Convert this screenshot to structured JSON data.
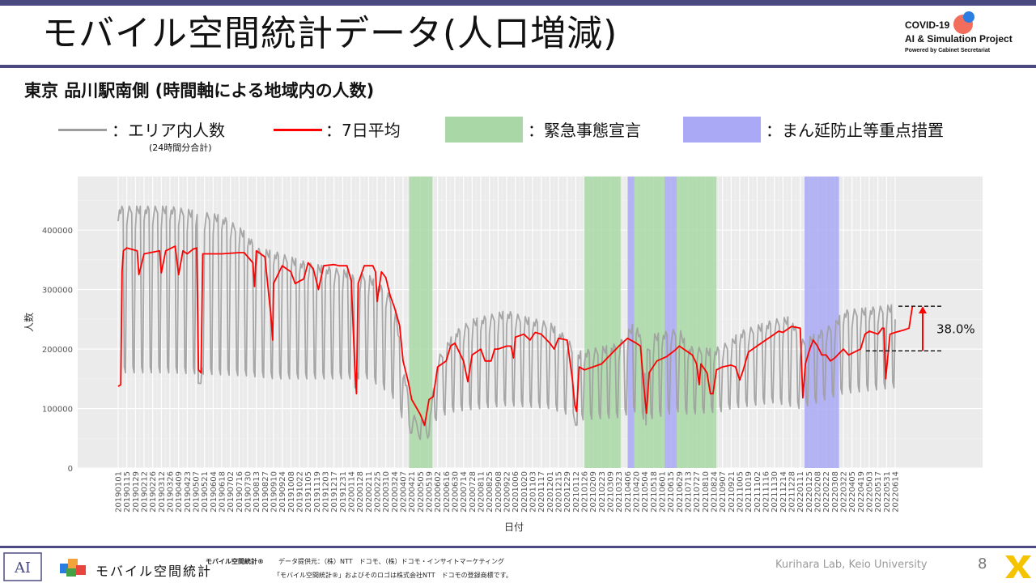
{
  "slide": {
    "title": "モバイル空間統計データ(人口増減)",
    "subtitle": "東京 品川駅南側 (時間軸による地域内の人数)",
    "page_number": "8",
    "credit": "Kurihara Lab, Keio University"
  },
  "brand": {
    "line1": "COVID-19",
    "line2": "AI & Simulation Project",
    "line3": "Powered by Cabinet Secretariat",
    "logo_text": "モバイル空間統計",
    "logo_mark": "AI"
  },
  "legend": {
    "raw_label": "：エリア内人数",
    "raw_note": "(24時間分合計)",
    "avg_label": "：7日平均",
    "emergency_label": "：緊急事態宣言",
    "semi_label": "：まん延防止等重点措置"
  },
  "footer": {
    "product": "モバイル空間統計®",
    "source": "データ提供元：（株）NTT　ドコモ、（株）ドコモ・インサイトマーケティング",
    "trademark": "「モバイル空間統計®」およびそのロゴは株式会社NTT　ドコモの登録商標です。"
  },
  "colors": {
    "accent": "#4b4a80",
    "raw": "#9e9e9e",
    "avg": "#ff0000",
    "emergency": "#a9d8a6",
    "semi": "#a9a9f5",
    "panel": "#ebebeb"
  },
  "chart_data": {
    "type": "line",
    "xlabel": "日付",
    "ylabel": "人数",
    "ylim": [
      0,
      490000
    ],
    "yticks": [
      0,
      100000,
      200000,
      300000,
      400000
    ],
    "x_tick_labels": [
      "20190101",
      "20190115",
      "20190129",
      "20190212",
      "20190226",
      "20190312",
      "20190326",
      "20190409",
      "20190423",
      "20190507",
      "20190521",
      "20190604",
      "20190618",
      "20190702",
      "20190716",
      "20190730",
      "20190813",
      "20190827",
      "20190910",
      "20190924",
      "20191008",
      "20191022",
      "20191105",
      "20191119",
      "20191203",
      "20191217",
      "20191231",
      "20200114",
      "20200128",
      "20200211",
      "20200225",
      "20200310",
      "20200324",
      "20200407",
      "20200421",
      "20200505",
      "20200519",
      "20200602",
      "20200616",
      "20200630",
      "20200714",
      "20200728",
      "20200811",
      "20200825",
      "20200908",
      "20200922",
      "20201006",
      "20201020",
      "20201103",
      "20201117",
      "20201201",
      "20201215",
      "20201229",
      "20210112",
      "20210126",
      "20210209",
      "20210223",
      "20210309",
      "20210323",
      "20210406",
      "20210420",
      "20210504",
      "20210518",
      "20210601",
      "20210615",
      "20210629",
      "20210713",
      "20210727",
      "20210810",
      "20210824",
      "20210907",
      "20210921",
      "20211005",
      "20211019",
      "20211102",
      "20211116",
      "20211130",
      "20211214",
      "20211228",
      "20220111",
      "20220125",
      "20220208",
      "20220222",
      "20220308",
      "20220322",
      "20220405",
      "20220419",
      "20220503",
      "20220517",
      "20220531",
      "20220614"
    ],
    "grid": true,
    "series": [
      {
        "name": "エリア内人数",
        "style": "weekly oscillation (weekday high / weekend low)",
        "weekday_levels": [
          [
            0,
            440000
          ],
          [
            6,
            440000
          ],
          [
            12,
            425000
          ],
          [
            15,
            395000
          ],
          [
            16,
            370000
          ],
          [
            18,
            365000
          ],
          [
            22,
            345000
          ],
          [
            29,
            325000
          ],
          [
            31,
            300000
          ],
          [
            32,
            280000
          ],
          [
            33,
            175000
          ],
          [
            34,
            90000
          ],
          [
            36,
            80000
          ],
          [
            37,
            185000
          ],
          [
            39,
            230000
          ],
          [
            41,
            250000
          ],
          [
            45,
            265000
          ],
          [
            47,
            255000
          ],
          [
            50,
            245000
          ],
          [
            52,
            220000
          ],
          [
            53,
            195000
          ],
          [
            58,
            210000
          ],
          [
            59,
            230000
          ],
          [
            60,
            250000
          ],
          [
            61,
            190000
          ],
          [
            62,
            225000
          ],
          [
            65,
            235000
          ],
          [
            66,
            205000
          ],
          [
            69,
            200000
          ],
          [
            71,
            215000
          ],
          [
            72,
            230000
          ],
          [
            76,
            250000
          ],
          [
            78,
            255000
          ],
          [
            79,
            215000
          ],
          [
            80,
            220000
          ],
          [
            83,
            245000
          ],
          [
            84,
            265000
          ],
          [
            90,
            275000
          ]
        ],
        "weekend_levels": [
          [
            0,
            160000
          ],
          [
            6,
            160000
          ],
          [
            15,
            155000
          ],
          [
            18,
            150000
          ],
          [
            29,
            150000
          ],
          [
            31,
            130000
          ],
          [
            32,
            115000
          ],
          [
            33,
            80000
          ],
          [
            34,
            55000
          ],
          [
            36,
            50000
          ],
          [
            37,
            85000
          ],
          [
            39,
            95000
          ],
          [
            45,
            105000
          ],
          [
            50,
            100000
          ],
          [
            52,
            90000
          ],
          [
            53,
            80000
          ],
          [
            58,
            85000
          ],
          [
            59,
            90000
          ],
          [
            60,
            95000
          ],
          [
            61,
            80000
          ],
          [
            65,
            95000
          ],
          [
            66,
            90000
          ],
          [
            70,
            95000
          ],
          [
            71,
            100000
          ],
          [
            76,
            110000
          ],
          [
            79,
            100000
          ],
          [
            84,
            125000
          ],
          [
            90,
            135000
          ]
        ]
      },
      {
        "name": "7日平均",
        "points": [
          [
            0,
            137000
          ],
          [
            0.3,
            140000
          ],
          [
            0.45,
            330000
          ],
          [
            0.6,
            365000
          ],
          [
            1,
            370000
          ],
          [
            2.2,
            365000
          ],
          [
            2.4,
            325000
          ],
          [
            3,
            360000
          ],
          [
            4.8,
            365000
          ],
          [
            5,
            328000
          ],
          [
            5.5,
            365000
          ],
          [
            6.6,
            373000
          ],
          [
            7,
            325000
          ],
          [
            7.5,
            365000
          ],
          [
            8,
            360000
          ],
          [
            8.7,
            368000
          ],
          [
            9.1,
            370000
          ],
          [
            9.3,
            165000
          ],
          [
            9.6,
            160000
          ],
          [
            9.8,
            360000
          ],
          [
            12,
            360000
          ],
          [
            14,
            362000
          ],
          [
            14.6,
            362000
          ],
          [
            15.6,
            345000
          ],
          [
            15.8,
            305000
          ],
          [
            16,
            365000
          ],
          [
            17,
            355000
          ],
          [
            17.7,
            255000
          ],
          [
            17.9,
            215000
          ],
          [
            18,
            310000
          ],
          [
            19,
            340000
          ],
          [
            20,
            330000
          ],
          [
            20.5,
            310000
          ],
          [
            21.5,
            318000
          ],
          [
            22,
            345000
          ],
          [
            22.6,
            335000
          ],
          [
            23.2,
            300000
          ],
          [
            23.8,
            340000
          ],
          [
            25,
            342000
          ],
          [
            25.6,
            340000
          ],
          [
            26.5,
            340000
          ],
          [
            27,
            315000
          ],
          [
            27.4,
            170000
          ],
          [
            27.6,
            125000
          ],
          [
            27.8,
            310000
          ],
          [
            28.5,
            340000
          ],
          [
            29.5,
            340000
          ],
          [
            29.8,
            330000
          ],
          [
            30,
            280000
          ],
          [
            30.5,
            330000
          ],
          [
            31,
            320000
          ],
          [
            31.5,
            290000
          ],
          [
            32,
            270000
          ],
          [
            32.6,
            240000
          ],
          [
            33,
            180000
          ],
          [
            33.6,
            145000
          ],
          [
            34,
            115000
          ],
          [
            34.6,
            100000
          ],
          [
            35,
            90000
          ],
          [
            35.5,
            72000
          ],
          [
            36,
            115000
          ],
          [
            36.5,
            120000
          ],
          [
            37,
            170000
          ],
          [
            38,
            180000
          ],
          [
            38.5,
            205000
          ],
          [
            39,
            210000
          ],
          [
            39.5,
            195000
          ],
          [
            40,
            180000
          ],
          [
            40.5,
            145000
          ],
          [
            41,
            190000
          ],
          [
            42,
            200000
          ],
          [
            42.5,
            180000
          ],
          [
            43.2,
            180000
          ],
          [
            43.6,
            200000
          ],
          [
            44,
            200000
          ],
          [
            45,
            205000
          ],
          [
            45.5,
            205000
          ],
          [
            45.8,
            185000
          ],
          [
            46,
            220000
          ],
          [
            47,
            225000
          ],
          [
            47.7,
            215000
          ],
          [
            48.3,
            228000
          ],
          [
            49,
            225000
          ],
          [
            50,
            210000
          ],
          [
            50.5,
            200000
          ],
          [
            51,
            218000
          ],
          [
            52,
            215000
          ],
          [
            52.6,
            150000
          ],
          [
            52.9,
            105000
          ],
          [
            53.1,
            95000
          ],
          [
            53.4,
            170000
          ],
          [
            54,
            165000
          ],
          [
            55,
            170000
          ],
          [
            56,
            175000
          ],
          [
            57,
            190000
          ],
          [
            58,
            205000
          ],
          [
            59,
            218000
          ],
          [
            60,
            210000
          ],
          [
            60.5,
            205000
          ],
          [
            60.9,
            135000
          ],
          [
            61.2,
            92000
          ],
          [
            61.5,
            160000
          ],
          [
            62.4,
            180000
          ],
          [
            63.5,
            187000
          ],
          [
            64.5,
            198000
          ],
          [
            65,
            205000
          ],
          [
            66,
            195000
          ],
          [
            66.5,
            190000
          ],
          [
            67,
            175000
          ],
          [
            67.3,
            140000
          ],
          [
            67.5,
            175000
          ],
          [
            68.2,
            160000
          ],
          [
            68.6,
            125000
          ],
          [
            68.9,
            125000
          ],
          [
            69.3,
            165000
          ],
          [
            70,
            170000
          ],
          [
            71,
            173000
          ],
          [
            71.5,
            170000
          ],
          [
            72,
            148000
          ],
          [
            72.4,
            165000
          ],
          [
            73,
            195000
          ],
          [
            74,
            205000
          ],
          [
            75,
            215000
          ],
          [
            76,
            225000
          ],
          [
            76.5,
            230000
          ],
          [
            77,
            228000
          ],
          [
            78,
            238000
          ],
          [
            79,
            235000
          ],
          [
            79.3,
            118000
          ],
          [
            79.6,
            175000
          ],
          [
            80,
            195000
          ],
          [
            80.5,
            215000
          ],
          [
            81,
            205000
          ],
          [
            81.5,
            190000
          ],
          [
            82,
            190000
          ],
          [
            82.5,
            180000
          ],
          [
            83,
            185000
          ],
          [
            84,
            200000
          ],
          [
            84.6,
            190000
          ],
          [
            85.3,
            195000
          ],
          [
            86,
            200000
          ],
          [
            86.5,
            225000
          ],
          [
            87,
            230000
          ],
          [
            88,
            225000
          ],
          [
            88.5,
            235000
          ],
          [
            88.7,
            235000
          ],
          [
            88.9,
            150000
          ],
          [
            89.1,
            180000
          ],
          [
            89.4,
            225000
          ],
          [
            90,
            228000
          ],
          [
            91,
            232000
          ],
          [
            91.6,
            235000
          ],
          [
            92,
            272000
          ]
        ]
      }
    ],
    "shaded_periods": [
      {
        "type": "emergency",
        "start": 33.7,
        "end": 36.4
      },
      {
        "type": "emergency",
        "start": 54.0,
        "end": 58.2
      },
      {
        "type": "semi",
        "start": 59.0,
        "end": 59.8
      },
      {
        "type": "emergency",
        "start": 59.8,
        "end": 63.3
      },
      {
        "type": "semi",
        "start": 63.3,
        "end": 64.7
      },
      {
        "type": "emergency",
        "start": 64.7,
        "end": 69.3
      },
      {
        "type": "semi",
        "start": 79.5,
        "end": 83.5
      }
    ],
    "annotation": {
      "text": "38.0%",
      "from": 197000,
      "to": 272000
    }
  }
}
